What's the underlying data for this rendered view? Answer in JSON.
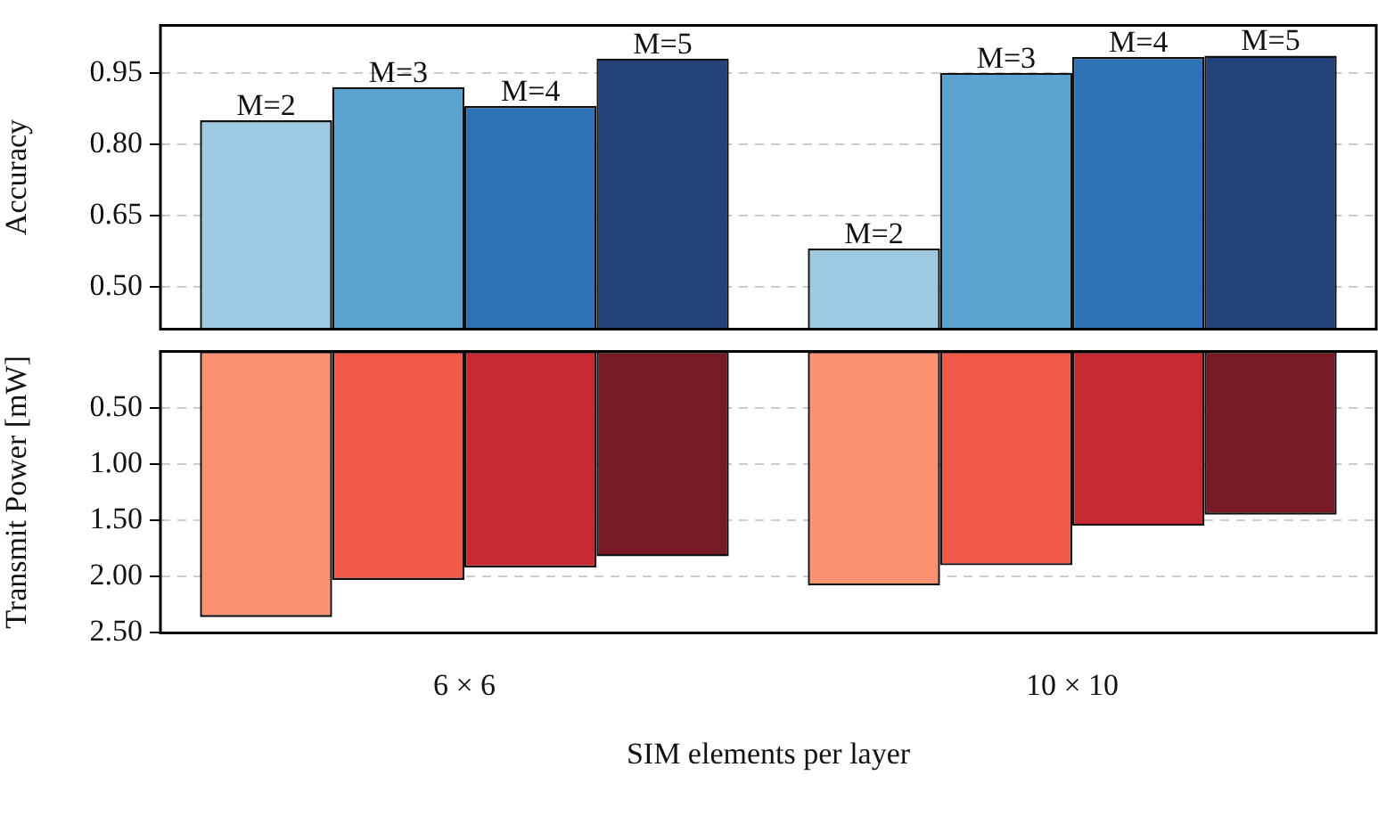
{
  "chart_data": [
    {
      "type": "bar",
      "ylabel": "Accuracy",
      "categories": [
        null,
        null
      ],
      "series": [
        {
          "name": "M=2",
          "color": "#9ecae1",
          "values": [
            0.85,
            0.58
          ]
        },
        {
          "name": "M=3",
          "color": "#5ba2cf",
          "values": [
            0.92,
            0.95
          ]
        },
        {
          "name": "M=4",
          "color": "#2e72b5",
          "values": [
            0.88,
            0.983
          ]
        },
        {
          "name": "M=5",
          "color": "#22447b",
          "values": [
            0.98,
            0.986
          ]
        }
      ],
      "ylim": [
        0.41,
        1.05
      ],
      "yticks": [
        {
          "value": 0.5,
          "label": "0.50"
        },
        {
          "value": 0.65,
          "label": "0.65"
        },
        {
          "value": 0.8,
          "label": "0.80"
        },
        {
          "value": 0.95,
          "label": "0.95"
        }
      ],
      "grid": "y",
      "tick_labels": "y",
      "legend": false
    },
    {
      "type": "bar",
      "xlabel": "SIM elements per layer",
      "ylabel": "Transmit Power [mW]",
      "categories": [
        "6 × 6",
        "10 × 10"
      ],
      "series": [
        {
          "color": "#fc9272",
          "values": [
            2.36,
            2.08
          ]
        },
        {
          "color": "#f15a48",
          "values": [
            2.03,
            1.9
          ]
        },
        {
          "color": "#c52a33",
          "values": [
            1.92,
            1.55
          ]
        },
        {
          "color": "#781b27",
          "values": [
            1.82,
            1.45
          ]
        }
      ],
      "ylim": [
        2.5,
        0
      ],
      "yticks": [
        {
          "value": 0.5,
          "label": "0.50"
        },
        {
          "value": 1,
          "label": "1.00"
        },
        {
          "value": 1.5,
          "label": "1.50"
        },
        {
          "value": 2,
          "label": "2.00"
        },
        {
          "value": 2.5,
          "label": "2.50"
        }
      ],
      "grid": "y",
      "legend": false
    }
  ]
}
